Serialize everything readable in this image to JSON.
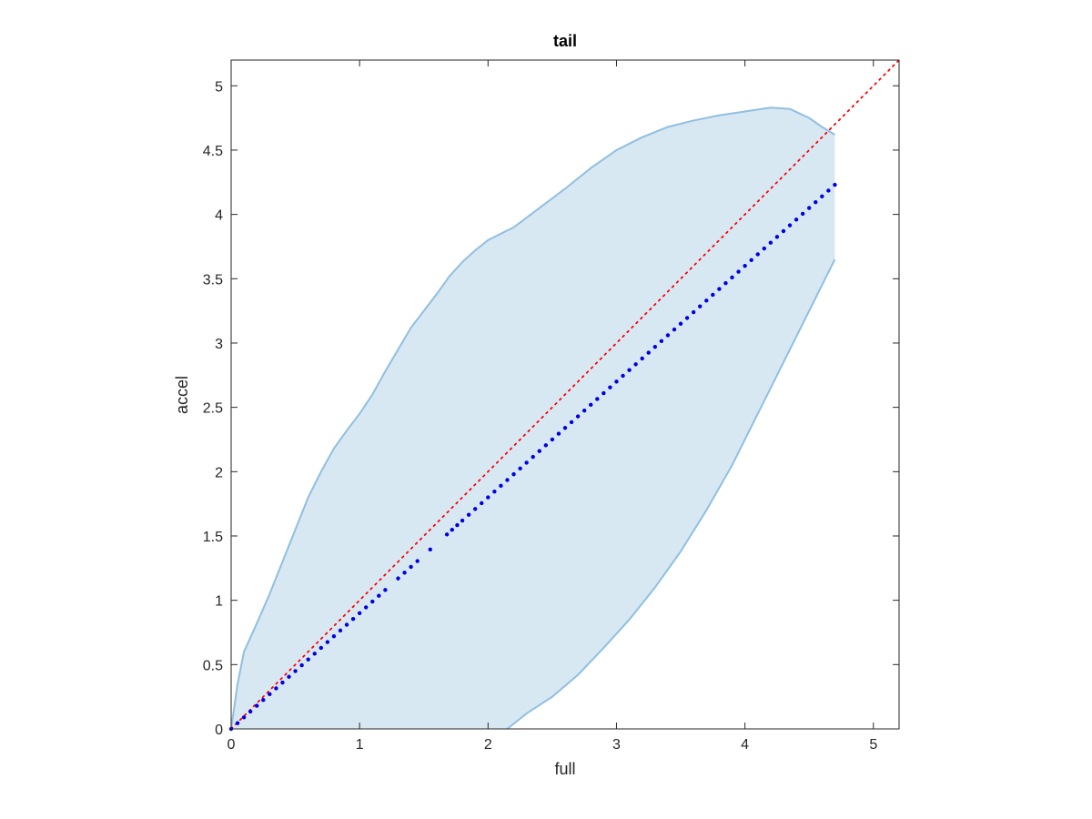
{
  "chart_data": {
    "type": "scatter",
    "title": "tail",
    "xlabel": "full",
    "ylabel": "accel",
    "xlim": [
      0,
      5.2
    ],
    "ylim": [
      0,
      5.2
    ],
    "xticks": [
      0,
      1,
      2,
      3,
      4,
      5
    ],
    "yticks": [
      0,
      0.5,
      1,
      1.5,
      2,
      2.5,
      3,
      3.5,
      4,
      4.5,
      5
    ],
    "xtick_labels": [
      "0",
      "1",
      "2",
      "3",
      "4",
      "5"
    ],
    "ytick_labels": [
      "0",
      "0.5",
      "1",
      "1.5",
      "2",
      "2.5",
      "3",
      "3.5",
      "4",
      "4.5",
      "5"
    ],
    "grid": false,
    "colors": {
      "band_fill": "#d8e8f3",
      "band_edge": "#8fbfe0",
      "points": "#0000e6",
      "reference": "#ff0000",
      "axis": "#262626"
    },
    "band": {
      "upper": [
        [
          0,
          0
        ],
        [
          0.05,
          0.35
        ],
        [
          0.1,
          0.6
        ],
        [
          0.2,
          0.82
        ],
        [
          0.3,
          1.05
        ],
        [
          0.4,
          1.3
        ],
        [
          0.5,
          1.55
        ],
        [
          0.6,
          1.8
        ],
        [
          0.7,
          2.0
        ],
        [
          0.8,
          2.18
        ],
        [
          0.9,
          2.32
        ],
        [
          1.0,
          2.45
        ],
        [
          1.1,
          2.6
        ],
        [
          1.2,
          2.78
        ],
        [
          1.3,
          2.95
        ],
        [
          1.4,
          3.12
        ],
        [
          1.5,
          3.25
        ],
        [
          1.6,
          3.38
        ],
        [
          1.7,
          3.52
        ],
        [
          1.8,
          3.63
        ],
        [
          1.9,
          3.72
        ],
        [
          2.0,
          3.8
        ],
        [
          2.2,
          3.9
        ],
        [
          2.4,
          4.05
        ],
        [
          2.6,
          4.2
        ],
        [
          2.8,
          4.36
        ],
        [
          3.0,
          4.5
        ],
        [
          3.2,
          4.6
        ],
        [
          3.4,
          4.68
        ],
        [
          3.6,
          4.73
        ],
        [
          3.8,
          4.77
        ],
        [
          4.0,
          4.8
        ],
        [
          4.2,
          4.83
        ],
        [
          4.35,
          4.82
        ],
        [
          4.5,
          4.75
        ],
        [
          4.6,
          4.68
        ],
        [
          4.7,
          4.62
        ]
      ],
      "lower": [
        [
          0,
          0
        ],
        [
          2.15,
          0
        ],
        [
          2.3,
          0.12
        ],
        [
          2.5,
          0.25
        ],
        [
          2.7,
          0.42
        ],
        [
          2.9,
          0.63
        ],
        [
          3.1,
          0.85
        ],
        [
          3.3,
          1.1
        ],
        [
          3.5,
          1.38
        ],
        [
          3.7,
          1.7
        ],
        [
          3.9,
          2.05
        ],
        [
          4.1,
          2.45
        ],
        [
          4.3,
          2.85
        ],
        [
          4.5,
          3.25
        ],
        [
          4.6,
          3.45
        ],
        [
          4.7,
          3.65
        ]
      ]
    },
    "series": [
      {
        "x": [
          0.0,
          0.05,
          0.1,
          0.15,
          0.2,
          0.25,
          0.3,
          0.35,
          0.4,
          0.45,
          0.5,
          0.55,
          0.6,
          0.65,
          0.7,
          0.75,
          0.8,
          0.85,
          0.9,
          0.95,
          1.0,
          1.05,
          1.1,
          1.15,
          1.2,
          1.3,
          1.35,
          1.4,
          1.45,
          1.55,
          1.68,
          1.72,
          1.76,
          1.8,
          1.85,
          1.9,
          1.95,
          2.0,
          2.05,
          2.1,
          2.15,
          2.2,
          2.25,
          2.3,
          2.35,
          2.4,
          2.45,
          2.5,
          2.55,
          2.6,
          2.65,
          2.7,
          2.75,
          2.8,
          2.85,
          2.9,
          2.95,
          3.0,
          3.05,
          3.1,
          3.15,
          3.2,
          3.25,
          3.3,
          3.35,
          3.4,
          3.45,
          3.5,
          3.55,
          3.6,
          3.65,
          3.7,
          3.75,
          3.8,
          3.85,
          3.9,
          3.95,
          4.0,
          4.05,
          4.1,
          4.15,
          4.2,
          4.25,
          4.3,
          4.35,
          4.4,
          4.45,
          4.5,
          4.55,
          4.6,
          4.65,
          4.7
        ],
        "y": [
          0.0,
          0.045,
          0.09,
          0.135,
          0.18,
          0.225,
          0.27,
          0.315,
          0.36,
          0.405,
          0.45,
          0.495,
          0.54,
          0.585,
          0.63,
          0.675,
          0.72,
          0.765,
          0.81,
          0.855,
          0.9,
          0.945,
          0.99,
          1.035,
          1.08,
          1.17,
          1.215,
          1.26,
          1.305,
          1.395,
          1.512,
          1.548,
          1.584,
          1.62,
          1.665,
          1.71,
          1.755,
          1.8,
          1.845,
          1.89,
          1.935,
          1.98,
          2.025,
          2.07,
          2.115,
          2.16,
          2.205,
          2.25,
          2.295,
          2.34,
          2.385,
          2.43,
          2.475,
          2.52,
          2.565,
          2.61,
          2.655,
          2.7,
          2.745,
          2.79,
          2.835,
          2.88,
          2.925,
          2.97,
          3.015,
          3.06,
          3.105,
          3.15,
          3.195,
          3.24,
          3.285,
          3.33,
          3.375,
          3.42,
          3.465,
          3.51,
          3.555,
          3.6,
          3.645,
          3.69,
          3.735,
          3.78,
          3.825,
          3.87,
          3.915,
          3.96,
          4.005,
          4.05,
          4.095,
          4.14,
          4.185,
          4.23
        ]
      }
    ],
    "reference_line": {
      "x": [
        0,
        5.2
      ],
      "y": [
        0,
        5.2
      ],
      "style": "dotted"
    }
  }
}
